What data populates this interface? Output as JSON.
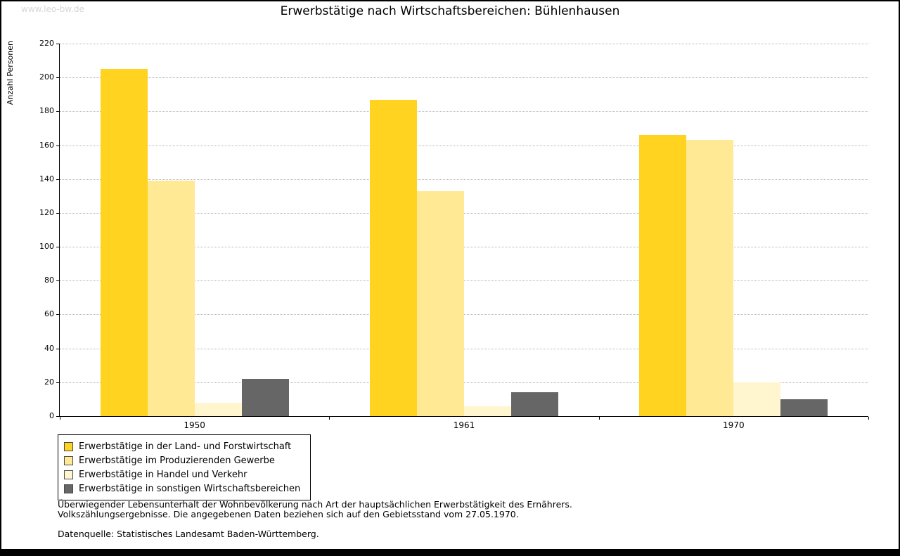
{
  "watermark": "www.leo-bw.de",
  "title": "Erwerbstätige nach Wirtschaftsbereichen: Bühlenhausen",
  "chart_data": {
    "type": "bar",
    "title": "Erwerbstätige nach Wirtschaftsbereichen: Bühlenhausen",
    "xlabel": "",
    "ylabel": "Anzahl Personen",
    "ylim": [
      0,
      220
    ],
    "ytick_step": 20,
    "grid": true,
    "legend_position": "bottom-left",
    "categories": [
      "1950",
      "1961",
      "1970"
    ],
    "series": [
      {
        "name": "Erwerbstätige in der Land- und Forstwirtschaft",
        "color": "#ffd320",
        "values": [
          205,
          187,
          166
        ]
      },
      {
        "name": "Erwerbstätige im Produzierenden Gewerbe",
        "color": "#ffe994",
        "values": [
          139,
          133,
          163
        ]
      },
      {
        "name": "Erwerbstätige in Handel und Verkehr",
        "color": "#fff5ce",
        "values": [
          8,
          6,
          20
        ]
      },
      {
        "name": "Erwerbstätige in sonstigen Wirtschaftsbereichen",
        "color": "#666666",
        "values": [
          22,
          14,
          10
        ]
      }
    ]
  },
  "footer": {
    "line1": "Überwiegender Lebensunterhalt der Wohnbevölkerung nach Art der hauptsächlichen Erwerbstätigkeit des Ernährers.",
    "line2": "Volkszählungsergebnisse. Die angegebenen Daten beziehen sich auf den Gebietsstand vom 27.05.1970.",
    "source": "Datenquelle: Statistisches Landesamt Baden-Württemberg."
  }
}
